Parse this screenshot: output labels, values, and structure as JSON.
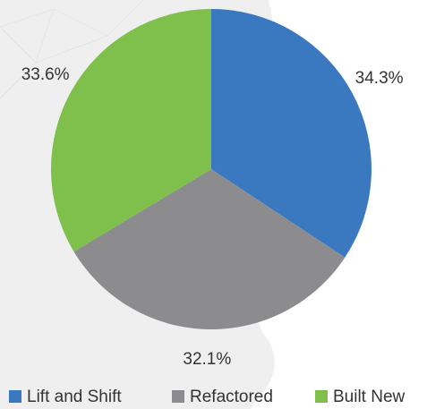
{
  "chart_data": {
    "type": "pie",
    "categories": [
      "Lift and Shift",
      "Refactored",
      "Built New"
    ],
    "values": [
      34.3,
      32.1,
      33.6
    ],
    "value_labels": [
      "34.3%",
      "32.1%",
      "33.6%"
    ],
    "colors": [
      "#3a78c0",
      "#8c8c8f",
      "#7fbf4b"
    ],
    "legend": "bottom"
  }
}
